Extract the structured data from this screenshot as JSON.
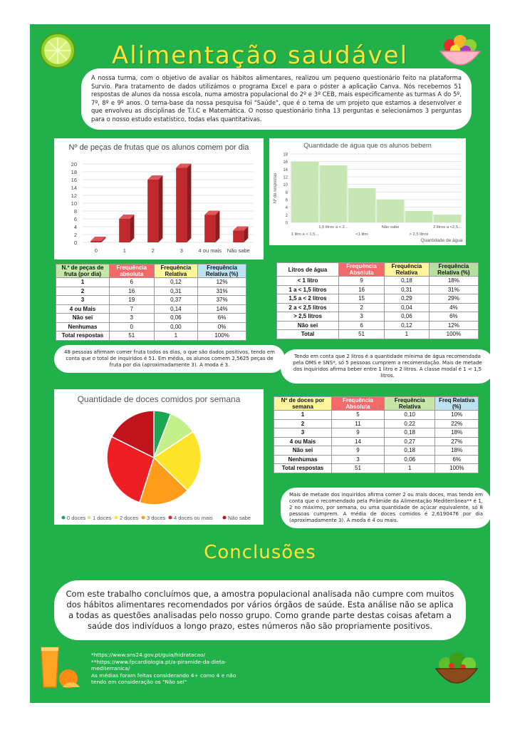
{
  "header": {
    "title": "Alimentação saudável",
    "intro": "A nossa turma, com o objetivo de avaliar os hábitos alimentares, realizou um pequeno questionário feito na plataforma Survio. Para tratamento de dados utilizámos o programa Excel e para o póster a aplicação Canva. Nós recebemos 51 respostas de alunos da nossa escola, numa amostra populacional do 2º e 3º CEB, mais especificamente as turmas A do 5º, 7º, 8º e 9º anos. O tema-base da nossa pesquisa foi \"Saúde\", que é o tema de um projeto que estamos a desenvolver e que envolveu as disciplinas de T.I.C e Matemática. O nosso questionário tinha 13 perguntas e selecionámos 3 perguntas para o nosso estudo estatístico, todas elas quantitativas."
  },
  "chart_data": [
    {
      "type": "bar",
      "title": "Nº de peças de frutas que os alunos comem por dia",
      "categories": [
        "0",
        "1",
        "2",
        "3",
        "4 ou mais",
        "Não sabe"
      ],
      "values": [
        0,
        6,
        16,
        19,
        7,
        3
      ],
      "ylim": [
        0,
        20
      ],
      "yticks": [
        "0",
        "2",
        "4",
        "6",
        "8",
        "10",
        "12",
        "14",
        "16",
        "18",
        "20"
      ],
      "color": "#c0282d"
    },
    {
      "type": "bar",
      "title": "Quantidade de água que os alunos bebem",
      "xlabel": "Quantidade de água",
      "ylabel": "Nº de respostas",
      "categories": [
        "1 litro a < 1,5...",
        "1,5 litros a < 2...",
        "<1 litro",
        "Não sabe",
        "> 2,5 litros",
        "2 litros a <2,5..."
      ],
      "values": [
        16,
        15,
        9,
        6,
        3,
        2
      ],
      "ylim": [
        0,
        18
      ],
      "yticks": [
        "0",
        "2",
        "4",
        "6",
        "8",
        "10",
        "12",
        "14",
        "16",
        "18"
      ],
      "color": "#c8e6b3"
    },
    {
      "type": "pie",
      "title": "Quantidade de doces comidos por semana",
      "labels": [
        "0 doces",
        "1 doces",
        "2 doces",
        "3 doces",
        "4  doces ou mais",
        "Não sabe"
      ],
      "values": [
        3,
        5,
        11,
        9,
        14,
        9
      ],
      "colors": [
        "#19a851",
        "#c3f08a",
        "#ffe52a",
        "#ff9c1a",
        "#ee1f24",
        "#c0141d"
      ]
    }
  ],
  "table_fruta": {
    "headers": [
      "N.º de peças de fruta (por dia)",
      "Frequência absoluta",
      "Frequência Relativa",
      "Frequência Relativa (%)"
    ],
    "rows": [
      [
        "1",
        "6",
        "0,12",
        "12%"
      ],
      [
        "2",
        "16",
        "0,31",
        "31%"
      ],
      [
        "3",
        "19",
        "0,37",
        "37%"
      ],
      [
        "4 ou Mais",
        "7",
        "0,14",
        "14%"
      ],
      [
        "Não sei",
        "3",
        "0,06",
        "6%"
      ],
      [
        "Nenhumas",
        "0",
        "0,00",
        "0%"
      ],
      [
        "Total respostas",
        "51",
        "1",
        "100%"
      ]
    ]
  },
  "table_agua": {
    "headers": [
      "Litros de água",
      "Frequência Absoluta",
      "Frequência Relativa",
      "Frequência Relativa (%)"
    ],
    "rows": [
      [
        "< 1 litro",
        "9",
        "0,18",
        "18%"
      ],
      [
        "1 a < 1,5 litros",
        "16",
        "0,31",
        "31%"
      ],
      [
        "1,5 a < 2 litros",
        "15",
        "0,29",
        "29%"
      ],
      [
        "2 a < 2,5 litros",
        "2",
        "0,04",
        "4%"
      ],
      [
        "> 2,5 litros",
        "3",
        "0,06",
        "6%"
      ],
      [
        "Não sei",
        "6",
        "0,12",
        "12%"
      ],
      [
        "Total",
        "51",
        "1",
        "100%"
      ]
    ]
  },
  "table_doces": {
    "headers": [
      "Nº de doces por semana",
      "Frequência Absoluta",
      "Frequência Relativa",
      "Freq Relativa (%)"
    ],
    "rows": [
      [
        "1",
        "5",
        "0,10",
        "10%"
      ],
      [
        "2",
        "11",
        "0,22",
        "22%"
      ],
      [
        "3",
        "9",
        "0,18",
        "18%"
      ],
      [
        "4 ou Mais",
        "14",
        "0,27",
        "27%"
      ],
      [
        "Não sei",
        "9",
        "0,18",
        "18%"
      ],
      [
        "Nenhumas",
        "3",
        "0,06",
        "6%"
      ],
      [
        "Total respostas",
        "51",
        "1",
        "100%"
      ]
    ]
  },
  "notes": {
    "fruta": "48 pessoas afirmam comer fruta todos os dias, o que são dados positivos, tendo em conta que o total de inquiridos é 51. Em média, os alunos comem 2,5625 peças de fruta por dia (aproximadamente 3). A moda é 3.",
    "agua": "Tendo em conta que 2 litros é a quantidade mínima de água recomendada pela OMS e SNS*, só 5 pessoas cumprem a recomendação. Mais de metade dos inquiridos afirma beber entre 1 litro e 2 litros. A classe modal é 1 < 1,5 litros.",
    "doces": "Mais de metade dos inquiridos afirma comer 2 ou mais doces, mas tendo em conta que o recomendado pela Pirâmide da Alimentação Mediterrânea** é 1, 2 no máximo, por semana, ou uma quantidade de açúcar equivalente, só 8 pessoas cumprem. A média de doces comidos é 2,6190476 por dia (aproximadamente 3). A moda é 4 ou mais."
  },
  "conclusion": {
    "heading": "Conclusões",
    "text": "Com este trabalho concluímos que, a amostra populacional analisada não cumpre com muitos dos hábitos alimentares recomendados por vários órgãos de saúde. Esta análise não se aplica a todas as questões analisadas pelo nosso grupo. Como grande parte destas coisas afetam a saúde dos indivíduos a longo prazo, estes números não são propriamente positivos."
  },
  "references": {
    "line1": "*https://www.sns24.gov.pt/guia/hidratacao/",
    "line2": "**https://www.fpcardiologia.pt/a-piramide-da-dieta-mediterranica/",
    "line3": "As médias foram feitas considerando 4+ como 4 e não tendo em consideração os \"Não sei\""
  }
}
